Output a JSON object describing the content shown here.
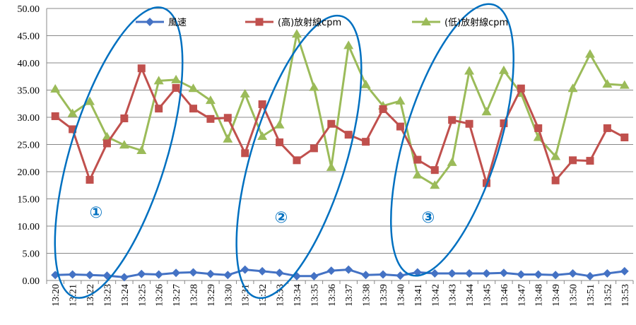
{
  "chart_data": {
    "type": "line",
    "title": "",
    "xlabel": "",
    "ylabel": "",
    "ylim": [
      0,
      50
    ],
    "y_tick_step": 5,
    "y_tick_labels": [
      "0.00",
      "5.00",
      "10.00",
      "15.00",
      "20.00",
      "25.00",
      "30.00",
      "35.00",
      "40.00",
      "45.00",
      "50.00"
    ],
    "grid": "horizontal",
    "legend_position": "top",
    "categories": [
      "13:20",
      "13:21",
      "13:22",
      "13:23",
      "13:24",
      "13:25",
      "13:26",
      "13:27",
      "13:28",
      "13:29",
      "13:30",
      "13:31",
      "13:32",
      "13:33",
      "13:34",
      "13:35",
      "13:36",
      "13:37",
      "13:38",
      "13:39",
      "13:40",
      "13:41",
      "13:42",
      "13:43",
      "13:44",
      "13:45",
      "13:46",
      "13:47",
      "13:48",
      "13:49",
      "13:50",
      "13:51",
      "13:52",
      "13:53"
    ],
    "series": [
      {
        "name": "風速",
        "color": "#4472c4",
        "marker": "diamond",
        "values": [
          1.0,
          1.1,
          1.0,
          0.9,
          0.6,
          1.2,
          1.1,
          1.4,
          1.5,
          1.2,
          1.0,
          2.0,
          1.7,
          1.4,
          0.8,
          0.8,
          1.8,
          2.0,
          1.0,
          1.1,
          0.9,
          1.5,
          1.3,
          1.3,
          1.3,
          1.3,
          1.4,
          1.1,
          1.1,
          1.0,
          1.3,
          0.8,
          1.3,
          1.7
        ]
      },
      {
        "name": "(高)放射線cpm",
        "color": "#c0504d",
        "marker": "square",
        "values": [
          30.2,
          27.8,
          18.5,
          25.2,
          29.8,
          39.0,
          31.6,
          35.4,
          31.6,
          29.7,
          29.9,
          23.4,
          32.4,
          25.4,
          22.1,
          24.3,
          28.8,
          26.8,
          25.5,
          31.5,
          28.3,
          22.2,
          20.3,
          29.5,
          28.8,
          17.9,
          28.9,
          35.3,
          28.0,
          18.4,
          22.1,
          22.0,
          28.0,
          26.3
        ]
      },
      {
        "name": "(低)放射線cpm",
        "color": "#9bbb59",
        "marker": "triangle",
        "values": [
          35.2,
          30.7,
          32.9,
          26.4,
          24.9,
          23.9,
          36.7,
          36.9,
          35.3,
          33.1,
          26.0,
          34.3,
          26.5,
          28.6,
          45.3,
          35.5,
          20.8,
          43.2,
          36.0,
          32.1,
          33.0,
          19.4,
          17.5,
          21.7,
          38.5,
          31.0,
          38.6,
          34.4,
          26.3,
          22.8,
          35.3,
          41.6,
          36.1,
          35.9
        ]
      }
    ],
    "annotations": [
      {
        "label": "①",
        "color": "#0070c0"
      },
      {
        "label": "②",
        "color": "#0070c0"
      },
      {
        "label": "③",
        "color": "#0070c0"
      }
    ]
  }
}
